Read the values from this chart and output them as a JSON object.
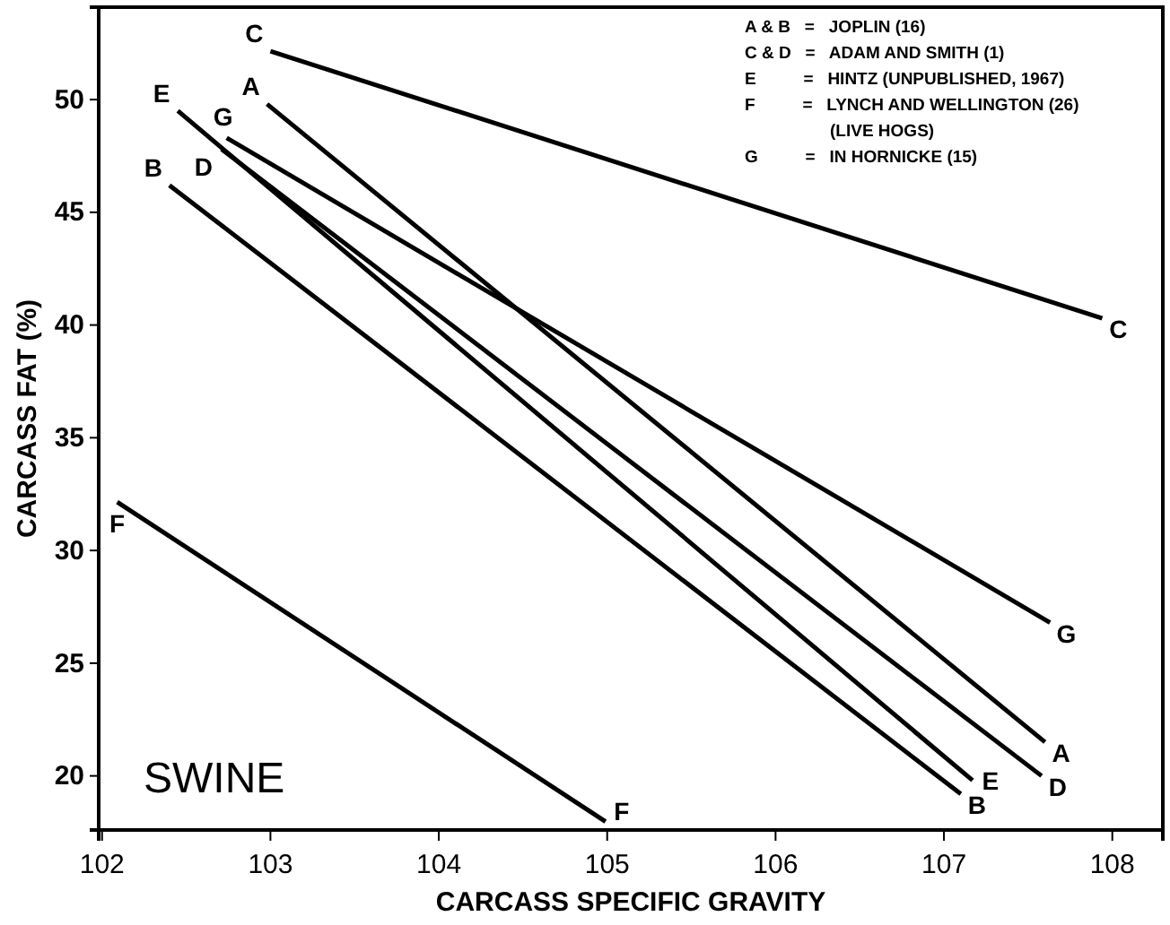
{
  "chart_data": {
    "type": "line",
    "xlabel": "CARCASS SPECIFIC GRAVITY",
    "ylabel": "CARCASS FAT (%)",
    "xlim": [
      101.98,
      108.3
    ],
    "ylim": [
      17.6,
      54.1
    ],
    "xticks": [
      102,
      103,
      104,
      105,
      106,
      107,
      108
    ],
    "yticks": [
      20,
      25,
      30,
      35,
      40,
      45,
      50
    ],
    "grid": false,
    "legend": false,
    "marker": "none",
    "line_style": "solid",
    "annotations": [
      "SWINE",
      "A & B   =   JOPLIN (16)",
      "C & D   =   ADAM AND SMITH (1)",
      "E          =   HINTZ (UNPUBLISHED, 1967)",
      "F          =   LYNCH AND WELLINGTON (26)",
      "                  (LIVE HOGS)",
      "G          =   IN HORNICKE (15)"
    ],
    "series": [
      {
        "name": "A",
        "color": "#000000",
        "x": [
          102.98,
          107.6
        ],
        "values": [
          49.8,
          21.5
        ]
      },
      {
        "name": "B",
        "color": "#000000",
        "x": [
          102.4,
          107.1
        ],
        "values": [
          46.2,
          19.2
        ]
      },
      {
        "name": "C",
        "color": "#000000",
        "x": [
          103.0,
          107.94
        ],
        "values": [
          52.15,
          40.3
        ]
      },
      {
        "name": "D",
        "color": "#000000",
        "x": [
          102.71,
          107.58
        ],
        "values": [
          47.8,
          20.0
        ]
      },
      {
        "name": "E",
        "color": "#000000",
        "x": [
          102.45,
          107.17
        ],
        "values": [
          49.5,
          19.8
        ]
      },
      {
        "name": "F",
        "color": "#000000",
        "x": [
          102.09,
          104.99
        ],
        "values": [
          32.15,
          17.97
        ]
      },
      {
        "name": "G",
        "color": "#000000",
        "x": [
          102.74,
          107.63
        ],
        "values": [
          48.3,
          26.8
        ]
      }
    ]
  }
}
